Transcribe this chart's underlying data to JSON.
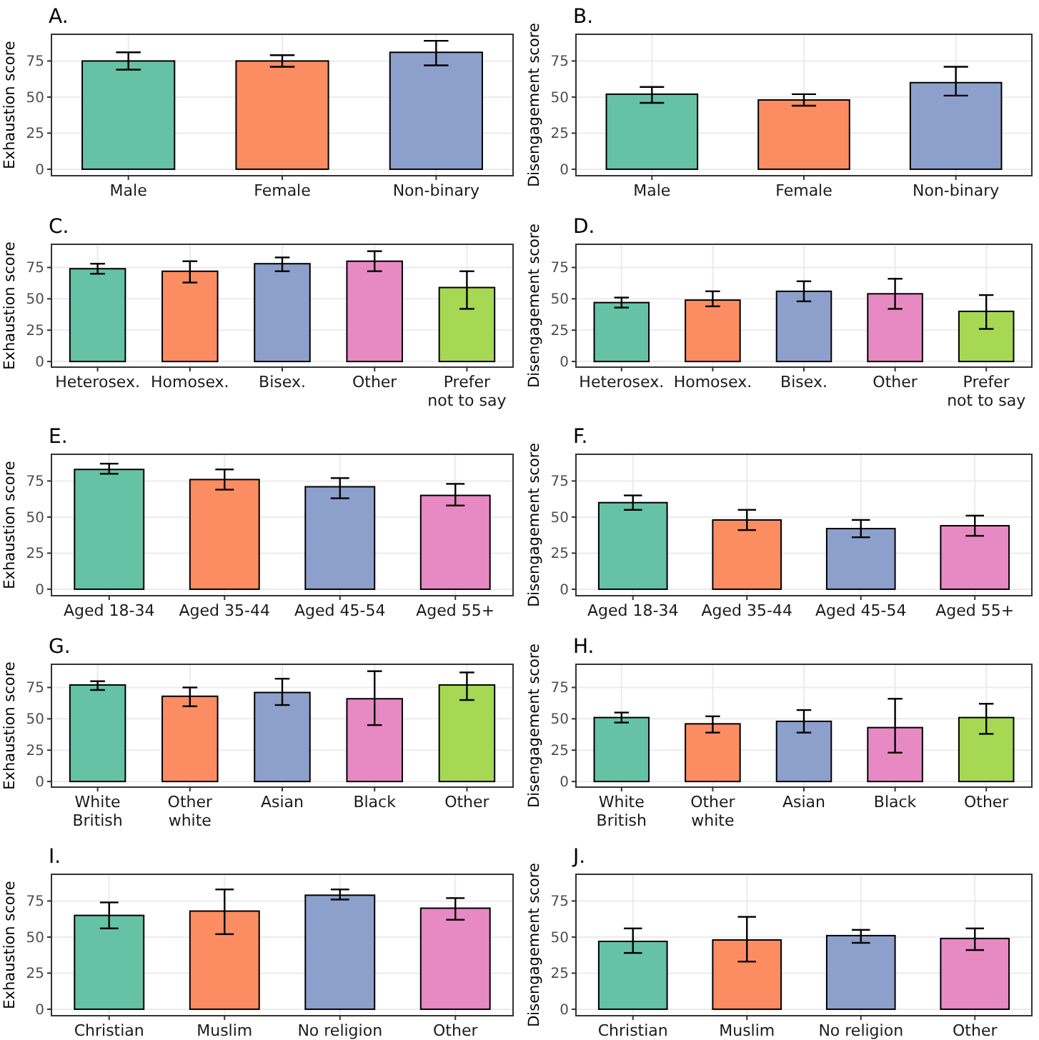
{
  "chart_data": [
    {
      "type": "bar",
      "title": "A.",
      "ylabel": "Exhaustion score",
      "categories": [
        "Male",
        "Female",
        "Non-binary"
      ],
      "values": [
        75,
        75,
        81
      ],
      "errors": [
        [
          69,
          81
        ],
        [
          71,
          79
        ],
        [
          72,
          89
        ]
      ],
      "colors": [
        "#66c2a5",
        "#fc8d62",
        "#8da0cb"
      ],
      "ylim": [
        -4.5,
        93.5
      ],
      "yticks": [
        0,
        25,
        50,
        75
      ],
      "grid": true
    },
    {
      "type": "bar",
      "title": "B.",
      "ylabel": "Disengagement score",
      "categories": [
        "Male",
        "Female",
        "Non-binary"
      ],
      "values": [
        52,
        48,
        60
      ],
      "errors": [
        [
          46,
          57
        ],
        [
          44,
          52
        ],
        [
          51,
          71
        ]
      ],
      "colors": [
        "#66c2a5",
        "#fc8d62",
        "#8da0cb"
      ],
      "ylim": [
        -4.5,
        93.5
      ],
      "yticks": [
        0,
        25,
        50,
        75
      ],
      "grid": true
    },
    {
      "type": "bar",
      "title": "C.",
      "ylabel": "Exhaustion score",
      "categories": [
        "Heterosex.",
        "Homosex.",
        "Bisex.",
        "Other",
        "Prefer\nnot to say"
      ],
      "values": [
        74,
        72,
        78,
        80,
        59
      ],
      "errors": [
        [
          70,
          78
        ],
        [
          63,
          80
        ],
        [
          72,
          83
        ],
        [
          72,
          88
        ],
        [
          42,
          72
        ]
      ],
      "colors": [
        "#66c2a5",
        "#fc8d62",
        "#8da0cb",
        "#e78ac3",
        "#a6d854"
      ],
      "ylim": [
        -4.5,
        93.5
      ],
      "yticks": [
        0,
        25,
        50,
        75
      ],
      "grid": true
    },
    {
      "type": "bar",
      "title": "D.",
      "ylabel": "Disengagement score",
      "categories": [
        "Heterosex.",
        "Homosex.",
        "Bisex.",
        "Other",
        "Prefer\nnot to say"
      ],
      "values": [
        47,
        49,
        56,
        54,
        40
      ],
      "errors": [
        [
          43,
          51
        ],
        [
          44,
          56
        ],
        [
          48,
          64
        ],
        [
          42,
          66
        ],
        [
          26,
          53
        ]
      ],
      "colors": [
        "#66c2a5",
        "#fc8d62",
        "#8da0cb",
        "#e78ac3",
        "#a6d854"
      ],
      "ylim": [
        -4.5,
        93.5
      ],
      "yticks": [
        0,
        25,
        50,
        75
      ],
      "grid": true
    },
    {
      "type": "bar",
      "title": "E.",
      "ylabel": "Exhaustion score",
      "categories": [
        "Aged 18-34",
        "Aged 35-44",
        "Aged 45-54",
        "Aged 55+"
      ],
      "values": [
        83,
        76,
        71,
        65
      ],
      "errors": [
        [
          80,
          87
        ],
        [
          69,
          83
        ],
        [
          63,
          77
        ],
        [
          58,
          73
        ]
      ],
      "colors": [
        "#66c2a5",
        "#fc8d62",
        "#8da0cb",
        "#e78ac3"
      ],
      "ylim": [
        -4.5,
        93.5
      ],
      "yticks": [
        0,
        25,
        50,
        75
      ],
      "grid": true
    },
    {
      "type": "bar",
      "title": "F.",
      "ylabel": "Disengagement score",
      "categories": [
        "Aged 18-34",
        "Aged 35-44",
        "Aged 45-54",
        "Aged 55+"
      ],
      "values": [
        60,
        48,
        42,
        44
      ],
      "errors": [
        [
          55,
          65
        ],
        [
          41,
          55
        ],
        [
          36,
          48
        ],
        [
          37,
          51
        ]
      ],
      "colors": [
        "#66c2a5",
        "#fc8d62",
        "#8da0cb",
        "#e78ac3"
      ],
      "ylim": [
        -4.5,
        93.5
      ],
      "yticks": [
        0,
        25,
        50,
        75
      ],
      "grid": true
    },
    {
      "type": "bar",
      "title": "G.",
      "ylabel": "Exhaustion score",
      "categories": [
        "White\nBritish",
        "Other\nwhite",
        "Asian",
        "Black",
        "Other"
      ],
      "values": [
        77,
        68,
        71,
        66,
        77
      ],
      "errors": [
        [
          73,
          80
        ],
        [
          60,
          75
        ],
        [
          61,
          82
        ],
        [
          45,
          88
        ],
        [
          65,
          87
        ]
      ],
      "colors": [
        "#66c2a5",
        "#fc8d62",
        "#8da0cb",
        "#e78ac3",
        "#a6d854"
      ],
      "ylim": [
        -4.5,
        93.5
      ],
      "yticks": [
        0,
        25,
        50,
        75
      ],
      "grid": true
    },
    {
      "type": "bar",
      "title": "H.",
      "ylabel": "Disengagement score",
      "categories": [
        "White\nBritish",
        "Other\nwhite",
        "Asian",
        "Black",
        "Other"
      ],
      "values": [
        51,
        46,
        48,
        43,
        51
      ],
      "errors": [
        [
          47,
          55
        ],
        [
          39,
          52
        ],
        [
          39,
          57
        ],
        [
          23,
          66
        ],
        [
          38,
          62
        ]
      ],
      "colors": [
        "#66c2a5",
        "#fc8d62",
        "#8da0cb",
        "#e78ac3",
        "#a6d854"
      ],
      "ylim": [
        -4.5,
        93.5
      ],
      "yticks": [
        0,
        25,
        50,
        75
      ],
      "grid": true
    },
    {
      "type": "bar",
      "title": "I.",
      "ylabel": "Exhaustion score",
      "categories": [
        "Christian",
        "Muslim",
        "No religion",
        "Other"
      ],
      "values": [
        65,
        68,
        79,
        70
      ],
      "errors": [
        [
          56,
          74
        ],
        [
          52,
          83
        ],
        [
          76,
          83
        ],
        [
          62,
          77
        ]
      ],
      "colors": [
        "#66c2a5",
        "#fc8d62",
        "#8da0cb",
        "#e78ac3"
      ],
      "ylim": [
        -4.5,
        93.5
      ],
      "yticks": [
        0,
        25,
        50,
        75
      ],
      "grid": true
    },
    {
      "type": "bar",
      "title": "J.",
      "ylabel": "Disengagement score",
      "categories": [
        "Christian",
        "Muslim",
        "No religion",
        "Other"
      ],
      "values": [
        47,
        48,
        51,
        49
      ],
      "errors": [
        [
          39,
          56
        ],
        [
          33,
          64
        ],
        [
          46,
          55
        ],
        [
          41,
          56
        ]
      ],
      "colors": [
        "#66c2a5",
        "#fc8d62",
        "#8da0cb",
        "#e78ac3"
      ],
      "ylim": [
        -4.5,
        93.5
      ],
      "yticks": [
        0,
        25,
        50,
        75
      ],
      "grid": true
    }
  ]
}
